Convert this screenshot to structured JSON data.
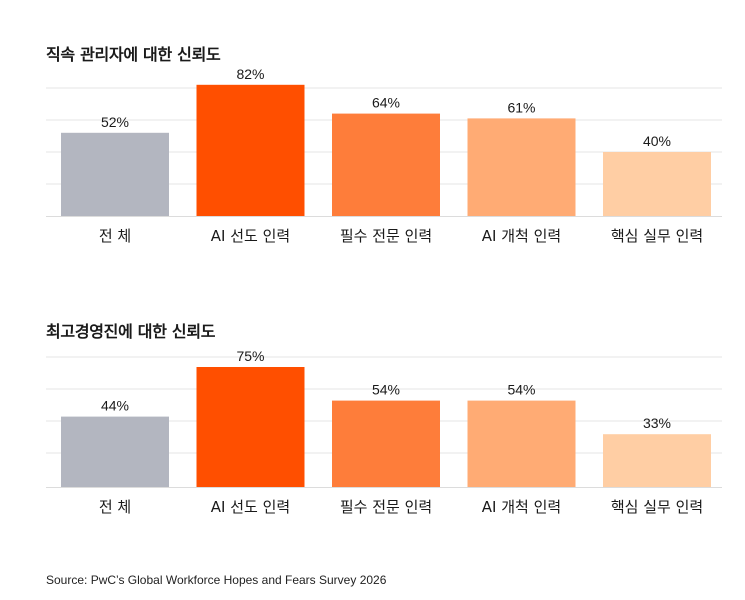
{
  "chart_data": [
    {
      "type": "bar",
      "title": "직속 관리자에 대한 신뢰도",
      "categories": [
        "전 체",
        "AI 선도 인력",
        "필수 전문 인력",
        "AI 개척 인력",
        "핵심 실무 인력"
      ],
      "values": [
        52,
        82,
        64,
        61,
        40
      ],
      "value_labels": [
        "52%",
        "82%",
        "64%",
        "61%",
        "40%"
      ],
      "colors": [
        "#b3b6c0",
        "#ff4f00",
        "#fe7d3a",
        "#ffab74",
        "#ffcea4"
      ],
      "ylim": [
        0,
        100
      ],
      "grid": true
    },
    {
      "type": "bar",
      "title": "최고경영진에 대한 신뢰도",
      "categories": [
        "전 체",
        "AI 선도 인력",
        "필수 전문 인력",
        "AI 개척 인력",
        "핵심 실무 인력"
      ],
      "values": [
        44,
        75,
        54,
        54,
        33
      ],
      "value_labels": [
        "44%",
        "75%",
        "54%",
        "54%",
        "33%"
      ],
      "colors": [
        "#b3b6c0",
        "#ff4f00",
        "#fe7d3a",
        "#ffab74",
        "#ffcea4"
      ],
      "ylim": [
        0,
        100
      ],
      "grid": true
    }
  ],
  "source": "Source: PwC’s Global Workforce Hopes and Fears Survey 2026"
}
